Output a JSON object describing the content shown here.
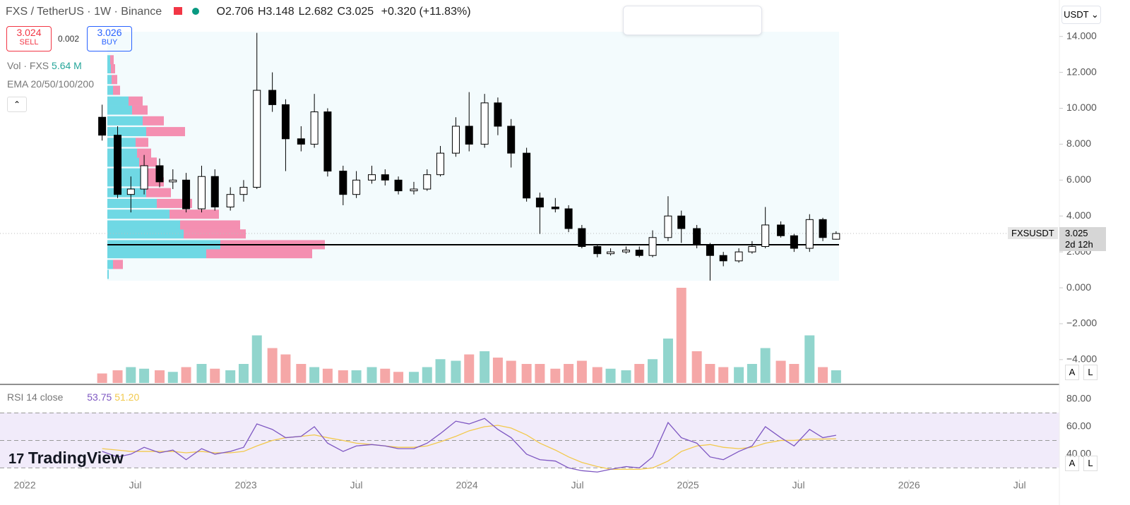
{
  "header": {
    "symbol": "FXS / TetherUS",
    "interval": "1W",
    "exchange": "Binance",
    "ohlc_labels": [
      "O",
      "H",
      "L",
      "C"
    ],
    "change": "+0.320 (+11.83%)"
  },
  "trade": {
    "sell_price": "3.024",
    "sell": "SELL",
    "spread": "0.002",
    "buy_price": "3.026",
    "buy": "BUY"
  },
  "indicators": {
    "volume_label": "Vol · FXS",
    "volume_value": "5.64 M",
    "ema_label": "EMA 20/50/100/200",
    "rsi_label": "RSI 14 close"
  },
  "currency": "USDT",
  "symbol_tag": "FXSUSDT",
  "countdown": "2d 12h",
  "logo": "TradingView",
  "auto": "A",
  "log": "L",
  "chart_data": {
    "type": "candlestick",
    "x": [
      2022.35,
      2022.42,
      2022.48,
      2022.54,
      2022.61,
      2022.67,
      2022.73,
      2022.8,
      2022.86,
      2022.93,
      2022.99,
      2023.05,
      2023.12,
      2023.18,
      2023.25,
      2023.31,
      2023.37,
      2023.44,
      2023.5,
      2023.57,
      2023.63,
      2023.69,
      2023.76,
      2023.82,
      2023.88,
      2023.95,
      2024.01,
      2024.08,
      2024.14,
      2024.2,
      2024.27,
      2024.33,
      2024.4,
      2024.46,
      2024.52,
      2024.59,
      2024.65,
      2024.72,
      2024.78,
      2024.84,
      2024.91,
      2024.97,
      2025.04,
      2025.1,
      2025.16,
      2025.23,
      2025.29,
      2025.35,
      2025.42,
      2025.48,
      2025.55,
      2025.61,
      2025.67
    ],
    "open": [
      9.5,
      8.5,
      5.2,
      5.5,
      6.8,
      5.9,
      6.0,
      4.4,
      6.2,
      4.5,
      5.2,
      5.6,
      11.0,
      10.2,
      8.3,
      8.0,
      9.8,
      6.5,
      5.2,
      6.0,
      6.3,
      6.0,
      5.4,
      5.5,
      6.3,
      7.5,
      9.0,
      8.0,
      10.3,
      9.0,
      7.5,
      5.0,
      4.5,
      4.4,
      3.3,
      2.3,
      1.9,
      2.0,
      2.1,
      1.8,
      2.8,
      4.0,
      3.3,
      2.4,
      1.8,
      1.5,
      2.0,
      2.3,
      3.5,
      2.9,
      2.2,
      3.8,
      2.706
    ],
    "high": [
      10.2,
      9.0,
      6.2,
      7.4,
      7.2,
      6.6,
      6.4,
      6.8,
      6.6,
      5.6,
      6.0,
      14.2,
      12.0,
      10.5,
      9.0,
      10.8,
      10.0,
      6.8,
      6.5,
      6.8,
      6.6,
      6.2,
      5.9,
      6.6,
      7.9,
      9.5,
      10.9,
      10.8,
      10.6,
      9.4,
      7.8,
      5.3,
      5.0,
      4.6,
      3.5,
      2.4,
      2.2,
      2.3,
      2.3,
      3.2,
      5.1,
      4.3,
      3.5,
      2.5,
      2.0,
      2.2,
      2.6,
      4.5,
      3.7,
      3.0,
      4.1,
      3.9,
      3.148
    ],
    "low": [
      8.2,
      5.0,
      4.2,
      5.2,
      5.6,
      5.5,
      4.2,
      4.2,
      4.3,
      4.3,
      4.8,
      5.5,
      9.8,
      6.5,
      7.6,
      7.8,
      6.2,
      4.6,
      5.0,
      5.8,
      5.7,
      5.2,
      5.2,
      5.4,
      6.2,
      7.3,
      7.6,
      7.8,
      8.5,
      6.7,
      4.8,
      3.0,
      4.2,
      3.1,
      2.2,
      1.7,
      1.8,
      1.9,
      1.7,
      1.7,
      2.6,
      2.5,
      2.2,
      0.4,
      1.2,
      1.4,
      1.9,
      2.2,
      2.8,
      2.0,
      2.0,
      2.6,
      2.682
    ],
    "close": [
      8.5,
      5.2,
      5.5,
      6.8,
      5.9,
      6.0,
      4.4,
      6.2,
      4.5,
      5.2,
      5.6,
      11.0,
      10.2,
      8.3,
      8.0,
      9.8,
      6.5,
      5.2,
      6.0,
      6.3,
      6.0,
      5.4,
      5.5,
      6.3,
      7.5,
      9.0,
      8.0,
      10.3,
      9.0,
      7.5,
      5.0,
      4.5,
      4.4,
      3.3,
      2.3,
      1.9,
      2.0,
      2.1,
      1.8,
      2.8,
      4.0,
      3.3,
      2.4,
      1.8,
      1.5,
      2.0,
      2.3,
      3.5,
      2.9,
      2.2,
      3.8,
      2.8,
      3.025
    ],
    "up_color": "#ffffff",
    "down_color": "#000000",
    "ylim": [
      -5.38,
      16.03
    ],
    "yticks": [
      {
        "value": 14,
        "label": "14.000"
      },
      {
        "value": 12,
        "label": "12.000"
      },
      {
        "value": 10,
        "label": "10.000"
      },
      {
        "value": 8,
        "label": "8.000"
      },
      {
        "value": 6,
        "label": "6.000"
      },
      {
        "value": 4,
        "label": "4.000"
      },
      {
        "value": 2,
        "label": "2.000"
      },
      {
        "value": 0,
        "label": "0.000"
      },
      {
        "value": -2,
        "label": "−2.000"
      },
      {
        "value": -4,
        "label": "−4.000"
      }
    ],
    "xlim": [
      2021.888,
      2026.68
    ],
    "xticks": [
      {
        "value": 2022,
        "label": "2022"
      },
      {
        "value": 2022.5,
        "label": "Jul"
      },
      {
        "value": 2023,
        "label": "2023"
      },
      {
        "value": 2023.5,
        "label": "Jul"
      },
      {
        "value": 2024,
        "label": "2024"
      },
      {
        "value": 2024.5,
        "label": "Jul"
      },
      {
        "value": 2025,
        "label": "2025"
      },
      {
        "value": 2025.5,
        "label": "Jul"
      },
      {
        "value": 2026,
        "label": "2026"
      },
      {
        "value": 2026.5,
        "label": "Jul"
      }
    ],
    "volume": {
      "values": [
        6,
        8,
        10,
        9,
        8,
        7,
        10,
        12,
        9,
        8,
        12,
        30,
        22,
        18,
        12,
        10,
        9,
        8,
        8,
        10,
        9,
        7,
        7,
        10,
        15,
        14,
        18,
        20,
        16,
        14,
        12,
        12,
        9,
        12,
        14,
        10,
        9,
        8,
        12,
        15,
        28,
        60,
        20,
        12,
        10,
        10,
        12,
        22,
        14,
        12,
        30,
        10,
        8
      ],
      "ylim": [
        0,
        60
      ],
      "up_color": "#91d5cd",
      "down_color": "#f5a7a7"
    },
    "rsi": {
      "ylim": [
        21.5,
        88.2
      ],
      "yticks": [
        {
          "value": 80,
          "label": "80.00"
        },
        {
          "value": 60,
          "label": "60.00"
        },
        {
          "value": 40,
          "label": "40.00"
        }
      ],
      "levels": [
        70,
        50,
        30
      ],
      "series": [
        {
          "color": "#7e57c2",
          "values": [
            42,
            38,
            40,
            45,
            41,
            43,
            36,
            44,
            40,
            42,
            45,
            62,
            58,
            52,
            53,
            60,
            48,
            42,
            46,
            47,
            46,
            44,
            44,
            48,
            55,
            64,
            62,
            66,
            58,
            52,
            40,
            36,
            35,
            30,
            28,
            27,
            29,
            31,
            30,
            38,
            63,
            52,
            48,
            38,
            36,
            42,
            46,
            60,
            52,
            46,
            58,
            52,
            53.75
          ]
        },
        {
          "color": "#f2c94c",
          "values": [
            44,
            43,
            42,
            42,
            42,
            42,
            41,
            42,
            41,
            41,
            42,
            46,
            50,
            52,
            53,
            54,
            52,
            50,
            48,
            47,
            46,
            45,
            45,
            46,
            49,
            53,
            57,
            60,
            61,
            59,
            54,
            48,
            43,
            38,
            34,
            31,
            29,
            29,
            29,
            30,
            35,
            42,
            46,
            47,
            45,
            44,
            45,
            48,
            50,
            50,
            51,
            51,
            51.2
          ],
          "value_labels": {
            "52": "51.20"
          }
        }
      ]
    },
    "volume_profile": {
      "prices": [
        0.75,
        1.3,
        1.9,
        2.4,
        3.0,
        3.5,
        4.1,
        4.7,
        5.3,
        5.9,
        6.4,
        7.0,
        7.5,
        8.1,
        8.7,
        9.3,
        9.9,
        10.4,
        11.0,
        11.6,
        12.2,
        12.7
      ],
      "buy": [
        2,
        8,
        140,
        160,
        108,
        103,
        88,
        70,
        55,
        50,
        48,
        45,
        42,
        40,
        55,
        50,
        35,
        30,
        8,
        6,
        5,
        4
      ],
      "sell": [
        0,
        14,
        150,
        148,
        88,
        85,
        70,
        50,
        35,
        30,
        28,
        25,
        20,
        18,
        55,
        30,
        22,
        20,
        10,
        8,
        6,
        5
      ],
      "poc": 2.4,
      "buy_color": "#6fd8e4",
      "sell_color": "#f48fb1"
    }
  }
}
